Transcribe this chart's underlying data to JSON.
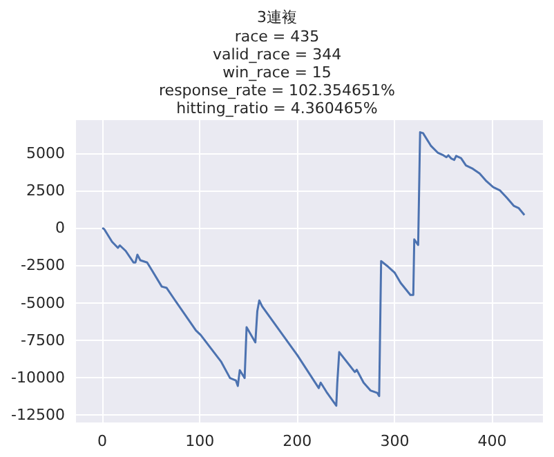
{
  "chart_data": {
    "type": "line",
    "title": "3連複",
    "subtitle": "race = 435\nvalid_race = 344\nwin_race = 15\nresponse_rate = 102.354651%\nhitting_ratio = 4.360465%",
    "x": [
      0,
      2,
      10,
      16,
      18,
      24,
      32,
      34,
      36,
      39,
      46,
      51,
      61,
      66,
      74,
      96,
      101,
      122,
      131,
      137,
      139,
      141,
      146,
      148,
      157,
      159,
      161,
      164,
      200,
      222,
      224,
      230,
      240,
      241,
      243,
      259,
      261,
      268,
      275,
      282,
      284,
      286,
      292,
      300,
      306,
      316,
      319,
      320,
      324,
      326,
      329,
      337,
      344,
      349,
      353,
      355,
      358,
      361,
      363,
      368,
      373,
      380,
      387,
      394,
      401,
      408,
      415,
      422,
      427,
      433
    ],
    "series": [
      {
        "color": "#4c72b0",
        "values": [
          0,
          -90,
          -930,
          -1330,
          -1170,
          -1540,
          -2310,
          -2310,
          -1790,
          -2160,
          -2310,
          -2840,
          -3920,
          -4010,
          -4780,
          -6850,
          -7160,
          -8950,
          -10030,
          -10190,
          -10560,
          -9510,
          -10030,
          -6640,
          -7650,
          -5560,
          -4850,
          -5250,
          -8500,
          -10700,
          -10340,
          -10960,
          -11880,
          -10400,
          -8300,
          -9630,
          -9480,
          -10340,
          -10860,
          -11020,
          -11230,
          -2220,
          -2530,
          -3000,
          -3670,
          -4480,
          -4480,
          -770,
          -1140,
          6390,
          6330,
          5490,
          5030,
          4880,
          4720,
          4850,
          4630,
          4540,
          4810,
          4660,
          4170,
          3950,
          3640,
          3120,
          2720,
          2500,
          2010,
          1480,
          1330,
          860
        ]
      }
    ],
    "xlim": [
      -27,
      452
    ],
    "ylim": [
      -13000,
      7200
    ],
    "xticks": [
      0,
      100,
      200,
      300,
      400
    ],
    "yticks": [
      -12500,
      -10000,
      -7500,
      -5000,
      -2500,
      0,
      2500,
      5000
    ],
    "grid": true,
    "marker": "none",
    "line_style": "solid"
  }
}
